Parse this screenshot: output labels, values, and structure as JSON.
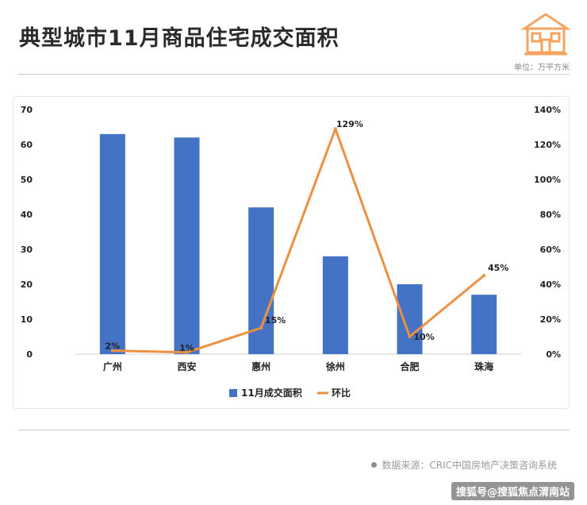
{
  "header": {
    "title": "典型城市11月商品住宅成交面积",
    "unit_note": "单位：万平方米",
    "logo_icon": "house-icon"
  },
  "colors": {
    "bar": "#4472C4",
    "line": "#ED9140",
    "accent": "#F4A460"
  },
  "chart_data": {
    "type": "bar",
    "categories": [
      "广州",
      "西安",
      "惠州",
      "徐州",
      "合肥",
      "珠海"
    ],
    "series": [
      {
        "name": "11月成交面积",
        "type": "bar",
        "axis": "left",
        "values": [
          63,
          62,
          42,
          28,
          20,
          17
        ]
      },
      {
        "name": "环比",
        "type": "line",
        "axis": "right",
        "values": [
          2,
          1,
          15,
          129,
          10,
          45
        ],
        "labels": [
          "2%",
          "1%",
          "15%",
          "129%",
          "10%",
          "45%"
        ]
      }
    ],
    "y_left": {
      "min": 0,
      "max": 70,
      "ticks": [
        "0",
        "10",
        "20",
        "30",
        "40",
        "50",
        "60",
        "70"
      ]
    },
    "y_right": {
      "min": 0,
      "max": 140,
      "ticks": [
        "0%",
        "20%",
        "40%",
        "60%",
        "80%",
        "100%",
        "120%",
        "140%"
      ]
    },
    "grid": false,
    "legend": "bottom"
  },
  "footer": {
    "source": "数据来源：CRIC中国房地产决策咨询系统",
    "credit": "搜狐号@搜狐焦点渭南站"
  }
}
